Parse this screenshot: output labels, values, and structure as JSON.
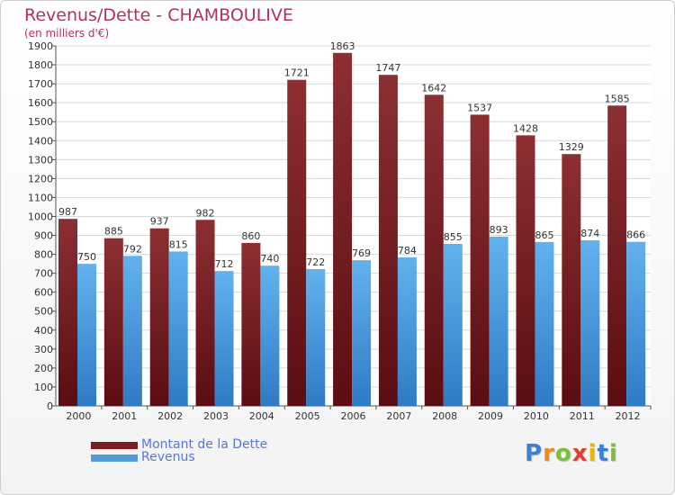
{
  "colors": {
    "debt": "#7a1d22",
    "revenue": "#4f9ddc",
    "title": "#b03060",
    "legend_text": "#5577dd"
  },
  "logo": {
    "letters": [
      "P",
      "r",
      "o",
      "x",
      "i",
      "t",
      "i"
    ],
    "letter_colors": [
      "#3b7fd6",
      "#f08a1c",
      "#7bbf3a",
      "#e83a2e",
      "#f0b400",
      "#3b7fd6",
      "#7bbf3a"
    ]
  },
  "chart_data": {
    "type": "bar",
    "title": "Revenus/Dette - CHAMBOULIVE",
    "subtitle": "(en milliers d'€)",
    "categories": [
      "2000",
      "2001",
      "2002",
      "2003",
      "2004",
      "2005",
      "2006",
      "2007",
      "2008",
      "2009",
      "2010",
      "2011",
      "2012"
    ],
    "series": [
      {
        "name": "Montant de la Dette",
        "values": [
          987,
          885,
          937,
          982,
          860,
          1721,
          1863,
          1747,
          1642,
          1537,
          1428,
          1329,
          1585
        ]
      },
      {
        "name": "Revenus",
        "values": [
          750,
          792,
          815,
          712,
          740,
          722,
          769,
          784,
          855,
          893,
          865,
          874,
          866
        ]
      }
    ],
    "ylim": [
      0,
      1900
    ],
    "ytick_step": 100,
    "grid": true,
    "legend_position": "bottom-left"
  }
}
